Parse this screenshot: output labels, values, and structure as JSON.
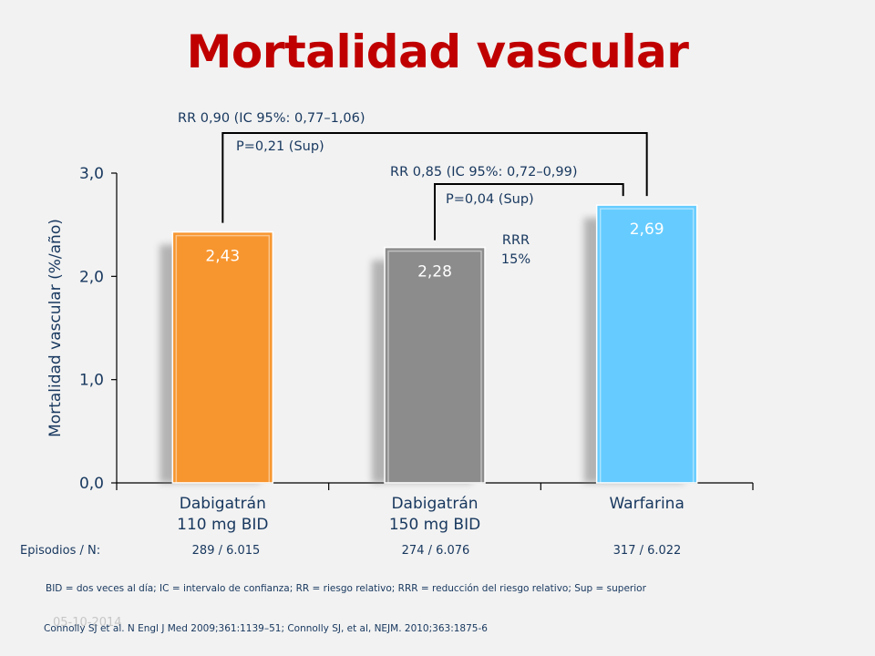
{
  "slide": {
    "title": "Mortalidad vascular",
    "date": "05-10-2014"
  },
  "chart_data": {
    "type": "bar",
    "title": "Mortalidad vascular",
    "ylabel": "Mortalidad vascular (%/año)",
    "ylim": [
      0,
      3
    ],
    "yticks": [
      0,
      1,
      2,
      3
    ],
    "ytick_labels": [
      "0,0",
      "1,0",
      "2,0",
      "3,0"
    ],
    "categories": [
      [
        "Dabigatrán",
        "110 mg BID"
      ],
      [
        "Dabigatrán",
        "150 mg BID"
      ],
      [
        "Warfarina"
      ]
    ],
    "values": [
      2.43,
      2.28,
      2.69
    ],
    "value_labels": [
      "2,43",
      "2,28",
      "2,69"
    ],
    "colors": [
      "#f7962f",
      "#8c8c8c",
      "#66ccff"
    ],
    "comparisons": [
      {
        "rr": "RR 0,90 (IC 95%: 0,77–1,06)",
        "p": "P=0,21 (Sup)",
        "from": 0,
        "to": 2
      },
      {
        "rr": "RR 0,85 (IC 95%: 0,72–0,99)",
        "p": "P=0,04 (Sup)",
        "from": 1,
        "to": 2
      }
    ],
    "rrr": [
      "RRR",
      "15%"
    ]
  },
  "episodes": {
    "label": "Episodios / N:",
    "values": [
      "289 / 6.015",
      "274 / 6.076",
      "317 / 6.022"
    ]
  },
  "footnotes": {
    "abbreviations": "BID = dos veces al día; IC = intervalo de confianza; RR = riesgo relativo; RRR = reducción del riesgo relativo; Sup = superior",
    "references": "Connolly SJ et al. N Engl J Med 2009;361:1139–51; Connolly SJ, et al, NEJM. 2010;363:1875-6"
  }
}
